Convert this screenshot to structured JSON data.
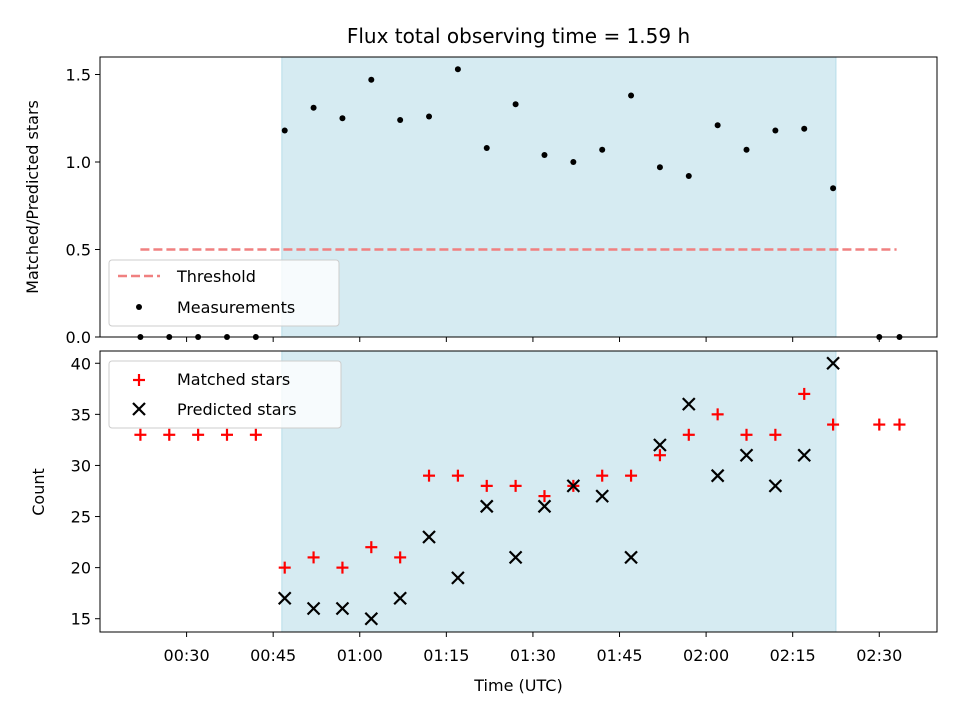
{
  "chart_data": [
    {
      "type": "scatter",
      "title": "Flux total observing time = 1.59 h",
      "xlabel": "",
      "ylabel": "Matched/Predicted stars",
      "xlim": [
        "00:15",
        "02:40"
      ],
      "ylim": [
        0,
        1.6
      ],
      "yticks": [
        "0.0",
        "0.5",
        "1.0",
        "1.5"
      ],
      "shaded_interval": [
        "00:46.5",
        "02:22.5"
      ],
      "shade_color": "#add8e6",
      "threshold": {
        "name": "Threshold",
        "value": 0.5,
        "x_range": [
          "00:22",
          "02:33"
        ],
        "color": "#f08080"
      },
      "series": [
        {
          "name": "Measurements",
          "color": "#000000",
          "x": [
            "00:22",
            "00:27",
            "00:32",
            "00:37",
            "00:42",
            "00:47",
            "00:52",
            "00:57",
            "01:02",
            "01:07",
            "01:12",
            "01:17",
            "01:22",
            "01:27",
            "01:32",
            "01:37",
            "01:42",
            "01:47",
            "01:52",
            "01:57",
            "02:02",
            "02:07",
            "02:12",
            "02:17",
            "02:22",
            "02:30",
            "02:33.5"
          ],
          "y": [
            0.0,
            0.0,
            0.0,
            0.0,
            0.0,
            1.18,
            1.31,
            1.25,
            1.47,
            1.24,
            1.26,
            1.53,
            1.08,
            1.33,
            1.04,
            1.0,
            1.07,
            1.38,
            0.97,
            0.92,
            1.21,
            1.07,
            1.18,
            1.19,
            0.85,
            0.0,
            0.0
          ]
        }
      ],
      "legend": {
        "placement": "lower-left",
        "entries": [
          "Threshold",
          "Measurements"
        ]
      }
    },
    {
      "type": "scatter",
      "title": "",
      "xlabel": "Time (UTC)",
      "ylabel": "Count",
      "xlim": [
        "00:15",
        "02:40"
      ],
      "ylim": [
        13.7,
        41.2
      ],
      "yticks": [
        "15",
        "20",
        "25",
        "30",
        "35",
        "40"
      ],
      "xticks": [
        "00:30",
        "00:45",
        "01:00",
        "01:15",
        "01:30",
        "01:45",
        "02:00",
        "02:15",
        "02:30"
      ],
      "shaded_interval": [
        "00:46.5",
        "02:22.5"
      ],
      "shade_color": "#add8e6",
      "series": [
        {
          "name": "Matched stars",
          "marker": "plus",
          "color": "#ff0000",
          "x": [
            "00:22",
            "00:27",
            "00:32",
            "00:37",
            "00:42",
            "00:47",
            "00:52",
            "00:57",
            "01:02",
            "01:07",
            "01:12",
            "01:17",
            "01:22",
            "01:27",
            "01:32",
            "01:37",
            "01:42",
            "01:47",
            "01:52",
            "01:57",
            "02:02",
            "02:07",
            "02:12",
            "02:17",
            "02:22",
            "02:30",
            "02:33.5"
          ],
          "y": [
            33,
            33,
            33,
            33,
            33,
            20,
            21,
            20,
            22,
            21,
            29,
            29,
            28,
            28,
            27,
            28,
            29,
            29,
            31,
            33,
            35,
            33,
            33,
            37,
            34,
            34,
            34
          ]
        },
        {
          "name": "Predicted stars",
          "marker": "x",
          "color": "#000000",
          "x": [
            "00:47",
            "00:52",
            "00:57",
            "01:02",
            "01:07",
            "01:12",
            "01:17",
            "01:22",
            "01:27",
            "01:32",
            "01:37",
            "01:42",
            "01:47",
            "01:52",
            "01:57",
            "02:02",
            "02:07",
            "02:12",
            "02:17",
            "02:22"
          ],
          "y": [
            17,
            16,
            16,
            15,
            17,
            23,
            19,
            26,
            21,
            26,
            28,
            27,
            21,
            32,
            36,
            29,
            31,
            28,
            31,
            40
          ]
        }
      ],
      "legend": {
        "placement": "upper-left",
        "entries": [
          "Matched stars",
          "Predicted stars"
        ]
      }
    }
  ]
}
